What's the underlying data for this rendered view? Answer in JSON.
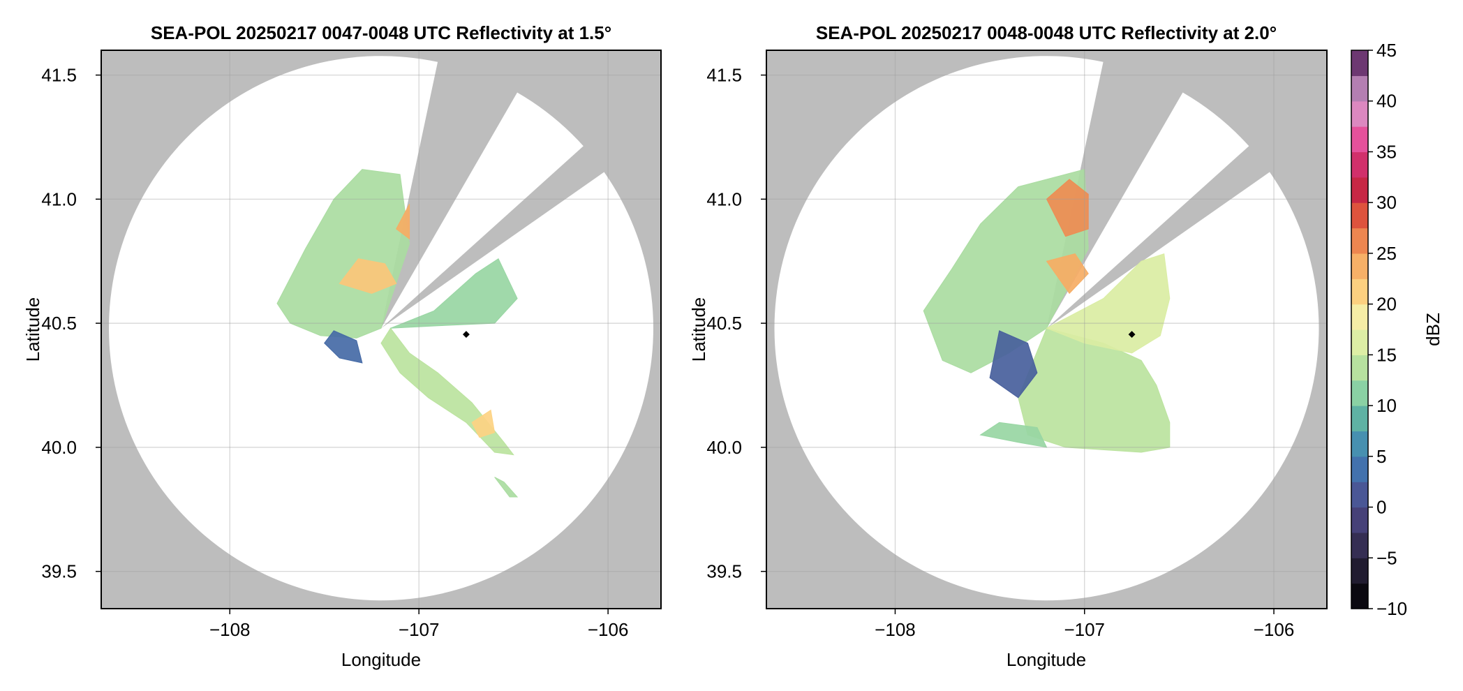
{
  "chart_data": [
    {
      "type": "heatmap",
      "title": "SEA-POL 20250217 0047-0048 UTC Reflectivity at 1.5°",
      "xlabel": "Longitude",
      "ylabel": "Latitude",
      "xlim": [
        -108.68,
        -105.72
      ],
      "ylim": [
        39.35,
        41.6
      ],
      "xticks": [
        -108,
        -107,
        -106
      ],
      "xtick_labels": [
        "−108",
        "−107",
        "−106"
      ],
      "yticks": [
        39.5,
        40.0,
        40.5,
        41.0,
        41.5
      ],
      "ytick_labels": [
        "39.5",
        "40.0",
        "40.5",
        "41.0",
        "41.5"
      ],
      "grid": true,
      "radar_center": [
        -107.2,
        40.48
      ],
      "blocked_sectors_deg": [
        [
          12,
          30
        ],
        [
          48,
          55
        ]
      ],
      "marker": {
        "lon": -106.75,
        "lat": 40.455
      },
      "echo_regions": [
        {
          "dbz": 13,
          "poly": [
            [
              -107.75,
              40.58
            ],
            [
              -107.6,
              40.8
            ],
            [
              -107.45,
              41.0
            ],
            [
              -107.3,
              41.12
            ],
            [
              -107.1,
              41.1
            ],
            [
              -107.05,
              40.82
            ],
            [
              -107.2,
              40.48
            ],
            [
              -107.33,
              40.44
            ],
            [
              -107.52,
              40.45
            ],
            [
              -107.68,
              40.5
            ]
          ]
        },
        {
          "dbz": 14,
          "poly": [
            [
              -107.15,
              40.48
            ],
            [
              -107.05,
              40.38
            ],
            [
              -106.9,
              40.3
            ],
            [
              -106.72,
              40.18
            ],
            [
              -106.55,
              40.02
            ],
            [
              -106.5,
              39.97
            ],
            [
              -106.6,
              39.98
            ],
            [
              -106.75,
              40.1
            ],
            [
              -106.95,
              40.2
            ],
            [
              -107.1,
              40.3
            ],
            [
              -107.2,
              40.42
            ]
          ]
        },
        {
          "dbz": 12,
          "poly": [
            [
              -107.15,
              40.48
            ],
            [
              -106.92,
              40.55
            ],
            [
              -106.7,
              40.7
            ],
            [
              -106.58,
              40.76
            ],
            [
              -106.48,
              40.6
            ],
            [
              -106.6,
              40.5
            ],
            [
              -106.9,
              40.49
            ]
          ]
        },
        {
          "dbz": 22,
          "poly": [
            [
              -107.42,
              40.66
            ],
            [
              -107.32,
              40.76
            ],
            [
              -107.18,
              40.74
            ],
            [
              -107.12,
              40.66
            ],
            [
              -107.25,
              40.62
            ]
          ]
        },
        {
          "dbz": 24,
          "poly": [
            [
              -107.12,
              40.88
            ],
            [
              -107.05,
              40.98
            ],
            [
              -107.05,
              40.84
            ]
          ]
        },
        {
          "dbz": 21,
          "poly": [
            [
              -106.72,
              40.1
            ],
            [
              -106.62,
              40.15
            ],
            [
              -106.6,
              40.06
            ],
            [
              -106.68,
              40.04
            ]
          ]
        },
        {
          "dbz": 3,
          "poly": [
            [
              -107.45,
              40.47
            ],
            [
              -107.33,
              40.43
            ],
            [
              -107.3,
              40.34
            ],
            [
              -107.42,
              40.36
            ],
            [
              -107.5,
              40.42
            ]
          ]
        },
        {
          "dbz": 13,
          "poly": [
            [
              -106.6,
              39.88
            ],
            [
              -106.55,
              39.86
            ],
            [
              -106.48,
              39.8
            ],
            [
              -106.52,
              39.8
            ]
          ]
        }
      ]
    },
    {
      "type": "heatmap",
      "title": "SEA-POL 20250217 0048-0048 UTC Reflectivity at 2.0°",
      "xlabel": "Longitude",
      "ylabel": "Latitude",
      "xlim": [
        -108.68,
        -105.72
      ],
      "ylim": [
        39.35,
        41.6
      ],
      "xticks": [
        -108,
        -107,
        -106
      ],
      "xtick_labels": [
        "−108",
        "−107",
        "−106"
      ],
      "yticks": [
        39.5,
        40.0,
        40.5,
        41.0,
        41.5
      ],
      "ytick_labels": [
        "39.5",
        "40.0",
        "40.5",
        "41.0",
        "41.5"
      ],
      "grid": true,
      "radar_center": [
        -107.2,
        40.48
      ],
      "blocked_sectors_deg": [
        [
          12,
          30
        ],
        [
          48,
          55
        ]
      ],
      "marker": {
        "lon": -106.75,
        "lat": 40.455
      },
      "echo_regions": [
        {
          "dbz": 13,
          "poly": [
            [
              -107.85,
              40.55
            ],
            [
              -107.7,
              40.72
            ],
            [
              -107.55,
              40.9
            ],
            [
              -107.35,
              41.05
            ],
            [
              -107.0,
              41.12
            ],
            [
              -106.98,
              40.8
            ],
            [
              -107.2,
              40.48
            ],
            [
              -107.4,
              40.38
            ],
            [
              -107.6,
              40.3
            ],
            [
              -107.75,
              40.35
            ],
            [
              -107.8,
              40.45
            ]
          ]
        },
        {
          "dbz": 14,
          "poly": [
            [
              -107.2,
              40.48
            ],
            [
              -107.35,
              40.2
            ],
            [
              -107.3,
              40.05
            ],
            [
              -107.1,
              40.0
            ],
            [
              -106.7,
              39.98
            ],
            [
              -106.55,
              40.0
            ],
            [
              -106.55,
              40.1
            ],
            [
              -106.62,
              40.25
            ],
            [
              -106.7,
              40.35
            ],
            [
              -106.9,
              40.42
            ]
          ]
        },
        {
          "dbz": 16,
          "poly": [
            [
              -107.2,
              40.48
            ],
            [
              -106.9,
              40.6
            ],
            [
              -106.7,
              40.75
            ],
            [
              -106.58,
              40.78
            ],
            [
              -106.55,
              40.6
            ],
            [
              -106.6,
              40.45
            ],
            [
              -106.75,
              40.38
            ],
            [
              -107.0,
              40.42
            ]
          ]
        },
        {
          "dbz": 26,
          "poly": [
            [
              -107.2,
              41.0
            ],
            [
              -107.08,
              41.08
            ],
            [
              -106.98,
              41.02
            ],
            [
              -106.98,
              40.88
            ],
            [
              -107.1,
              40.85
            ]
          ]
        },
        {
          "dbz": 24,
          "poly": [
            [
              -107.2,
              40.75
            ],
            [
              -107.05,
              40.78
            ],
            [
              -106.98,
              40.7
            ],
            [
              -107.08,
              40.62
            ]
          ]
        },
        {
          "dbz": 2,
          "poly": [
            [
              -107.45,
              40.47
            ],
            [
              -107.3,
              40.42
            ],
            [
              -107.25,
              40.3
            ],
            [
              -107.35,
              40.2
            ],
            [
              -107.5,
              40.28
            ]
          ]
        },
        {
          "dbz": 12,
          "poly": [
            [
              -107.55,
              40.05
            ],
            [
              -107.35,
              40.02
            ],
            [
              -107.2,
              40.0
            ],
            [
              -107.25,
              40.08
            ],
            [
              -107.45,
              40.1
            ]
          ]
        }
      ]
    }
  ],
  "colorbar": {
    "label": "dBZ",
    "min": -10,
    "max": 45,
    "step": 2.5,
    "ticks": [
      -10,
      -5,
      0,
      5,
      10,
      15,
      20,
      25,
      30,
      35,
      40,
      45
    ],
    "tick_labels": [
      "−10",
      "−5",
      "0",
      "5",
      "10",
      "15",
      "20",
      "25",
      "30",
      "35",
      "40",
      "45"
    ]
  },
  "colors": {
    "background": "#ffffff",
    "no_data": "#bdbdbd",
    "range_ring": "#ffffff",
    "grid": "#9e9e9e",
    "marker": "#000000"
  }
}
